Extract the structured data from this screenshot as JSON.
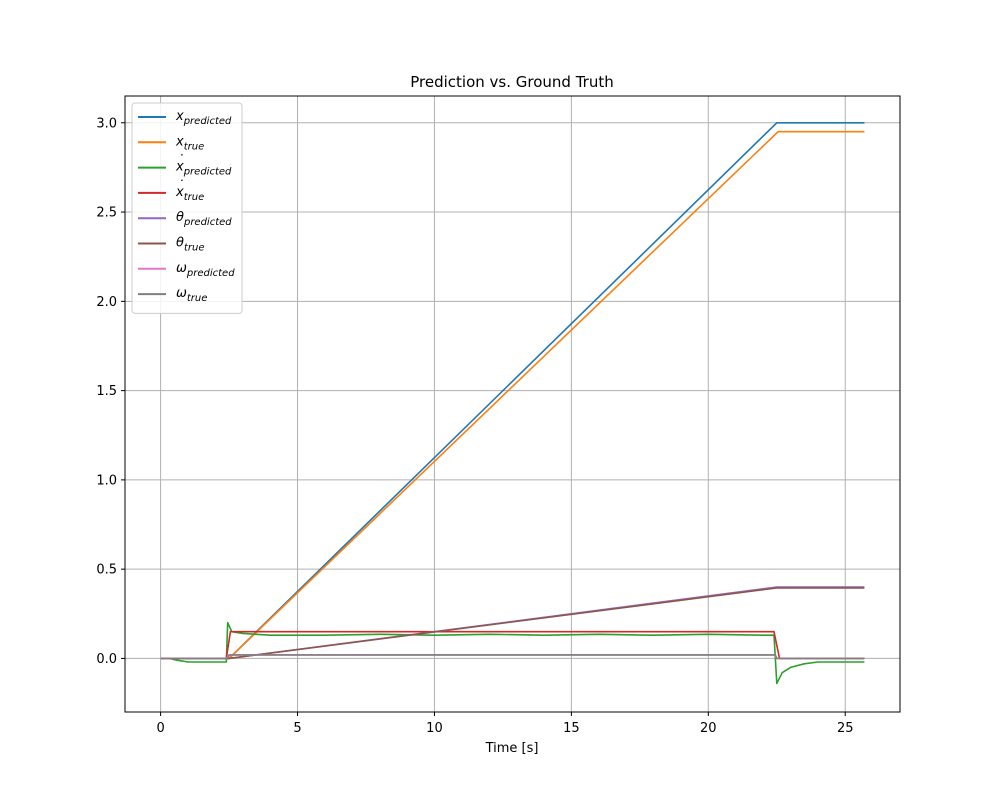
{
  "chart_data": {
    "type": "line",
    "title": "Prediction vs. Ground Truth",
    "xlabel": "Time [s]",
    "ylabel": "",
    "xlim": [
      -1.3,
      27.0
    ],
    "ylim": [
      -0.3,
      3.15
    ],
    "xticks": [
      0,
      5,
      10,
      15,
      20,
      25
    ],
    "yticks": [
      0.0,
      0.5,
      1.0,
      1.5,
      2.0,
      2.5,
      3.0
    ],
    "xtick_labels": [
      "0",
      "5",
      "10",
      "15",
      "20",
      "25"
    ],
    "ytick_labels": [
      "0.0",
      "0.5",
      "1.0",
      "1.5",
      "2.0",
      "2.5",
      "3.0"
    ],
    "grid": true,
    "legend_position": "top-left",
    "series": [
      {
        "name": "x_predicted",
        "label_main": "x",
        "label_accent": "",
        "label_sub": "predicted",
        "color": "#1f77b4",
        "points": [
          [
            0,
            0.0
          ],
          [
            2.5,
            0.0
          ],
          [
            22.5,
            3.0
          ],
          [
            25.7,
            3.0
          ]
        ]
      },
      {
        "name": "x_true",
        "label_main": "x",
        "label_accent": "",
        "label_sub": "true",
        "color": "#ff7f0e",
        "points": [
          [
            0,
            0.0
          ],
          [
            2.5,
            0.0
          ],
          [
            22.55,
            2.95
          ],
          [
            25.7,
            2.95
          ]
        ]
      },
      {
        "name": "xdot_predicted",
        "label_main": "x",
        "label_accent": "˙",
        "label_sub": "predicted",
        "color": "#2ca02c",
        "points": [
          [
            0,
            0.0
          ],
          [
            0.3,
            0.0
          ],
          [
            0.6,
            -0.01
          ],
          [
            1.0,
            -0.02
          ],
          [
            1.5,
            -0.02
          ],
          [
            2.0,
            -0.02
          ],
          [
            2.4,
            -0.02
          ],
          [
            2.45,
            0.2
          ],
          [
            2.6,
            0.15
          ],
          [
            3.0,
            0.14
          ],
          [
            4.0,
            0.13
          ],
          [
            6.0,
            0.13
          ],
          [
            8.0,
            0.135
          ],
          [
            10.0,
            0.13
          ],
          [
            12.0,
            0.135
          ],
          [
            14.0,
            0.13
          ],
          [
            16.0,
            0.135
          ],
          [
            18.0,
            0.13
          ],
          [
            20.0,
            0.135
          ],
          [
            22.0,
            0.13
          ],
          [
            22.4,
            0.13
          ],
          [
            22.5,
            -0.14
          ],
          [
            22.7,
            -0.08
          ],
          [
            23.0,
            -0.05
          ],
          [
            23.5,
            -0.03
          ],
          [
            24.0,
            -0.02
          ],
          [
            25.0,
            -0.02
          ],
          [
            25.7,
            -0.02
          ]
        ]
      },
      {
        "name": "xdot_true",
        "label_main": "x",
        "label_accent": "˙",
        "label_sub": "true",
        "color": "#d62728",
        "points": [
          [
            0,
            0.0
          ],
          [
            2.4,
            0.0
          ],
          [
            2.55,
            0.15
          ],
          [
            22.4,
            0.15
          ],
          [
            22.6,
            0.0
          ],
          [
            25.7,
            0.0
          ]
        ]
      },
      {
        "name": "theta_predicted",
        "label_main": "θ",
        "label_accent": "",
        "label_sub": "predicted",
        "color": "#9467bd",
        "points": [
          [
            0,
            0.0
          ],
          [
            2.5,
            0.0
          ],
          [
            22.5,
            0.4
          ],
          [
            25.7,
            0.4
          ]
        ]
      },
      {
        "name": "theta_true",
        "label_main": "θ",
        "label_accent": "",
        "label_sub": "true",
        "color": "#8c564b",
        "points": [
          [
            0,
            0.0
          ],
          [
            2.5,
            0.0
          ],
          [
            22.5,
            0.395
          ],
          [
            25.7,
            0.395
          ]
        ]
      },
      {
        "name": "omega_predicted",
        "label_main": "ω",
        "label_accent": "",
        "label_sub": "predicted",
        "color": "#e377c2",
        "points": [
          [
            0,
            0.0
          ],
          [
            2.4,
            0.0
          ],
          [
            2.5,
            0.02
          ],
          [
            22.4,
            0.02
          ],
          [
            22.5,
            0.0
          ],
          [
            25.7,
            0.0
          ]
        ]
      },
      {
        "name": "omega_true",
        "label_main": "ω",
        "label_accent": "",
        "label_sub": "true",
        "color": "#7f7f7f",
        "points": [
          [
            0,
            0.0
          ],
          [
            2.45,
            0.0
          ],
          [
            2.5,
            0.02
          ],
          [
            22.45,
            0.02
          ],
          [
            22.5,
            0.0
          ],
          [
            25.7,
            0.0
          ]
        ]
      }
    ]
  }
}
